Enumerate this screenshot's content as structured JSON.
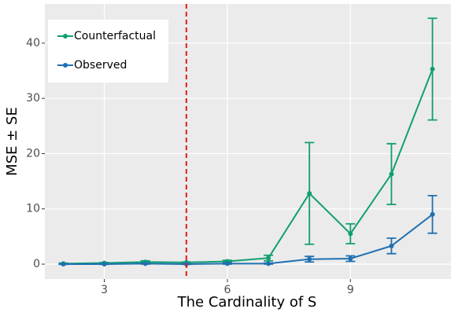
{
  "chart_data": {
    "type": "line",
    "xlabel": "The Cardinality of S",
    "ylabel": "MSE ± SE",
    "x": [
      2,
      3,
      4,
      5,
      6,
      7,
      8,
      9,
      10,
      11
    ],
    "series": [
      {
        "name": "Counterfactual",
        "color": "#119e72",
        "values": [
          0.1,
          0.2,
          0.4,
          0.3,
          0.5,
          1.1,
          12.8,
          5.5,
          16.3,
          35.3
        ],
        "errors": [
          0.1,
          0.1,
          0.2,
          0.1,
          0.2,
          0.5,
          9.2,
          1.8,
          5.5,
          9.2
        ]
      },
      {
        "name": "Observed",
        "color": "#1f70b2",
        "values": [
          0.0,
          0.0,
          0.1,
          0.0,
          0.1,
          0.1,
          0.9,
          1.0,
          3.3,
          9.0
        ],
        "errors": [
          0.05,
          0.05,
          0.1,
          0.05,
          0.1,
          0.1,
          0.5,
          0.5,
          1.4,
          3.4
        ]
      }
    ],
    "vline": 5,
    "vline_color": "#e31a1c",
    "xlim": [
      1.55,
      11.45
    ],
    "xticks": [
      3,
      6,
      9
    ],
    "ylim": [
      -2.7,
      47.1
    ],
    "yticks": [
      0,
      10,
      20,
      30,
      40
    ],
    "grid": true,
    "legend": "top-left"
  }
}
